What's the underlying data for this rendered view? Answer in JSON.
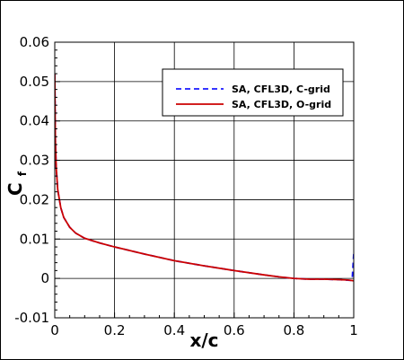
{
  "chart_data": {
    "type": "line",
    "xlabel": "x/c",
    "ylabel_main": "C",
    "ylabel_sub": "f",
    "xlim": [
      0,
      1
    ],
    "ylim": [
      -0.01,
      0.06
    ],
    "xticks": [
      0,
      0.2,
      0.4,
      0.6,
      0.8,
      1
    ],
    "xtick_labels": [
      "0",
      "0.2",
      "0.4",
      "0.6",
      "0.8",
      "1"
    ],
    "yticks": [
      -0.01,
      0,
      0.01,
      0.02,
      0.03,
      0.04,
      0.05,
      0.06
    ],
    "ytick_labels": [
      "-0.01",
      "0",
      "0.01",
      "0.02",
      "0.03",
      "0.04",
      "0.05",
      "0.06"
    ],
    "grid": true,
    "legend_position": "top-right",
    "series": [
      {
        "name": "SA, CFL3D, C-grid",
        "color": "#1a1aff",
        "style": "dashed",
        "x": [
          0,
          0.002,
          0.005,
          0.01,
          0.02,
          0.03,
          0.05,
          0.07,
          0.1,
          0.15,
          0.2,
          0.3,
          0.4,
          0.5,
          0.6,
          0.7,
          0.75,
          0.8,
          0.85,
          0.9,
          0.95,
          0.99,
          0.995,
          1.0
        ],
        "y": [
          0.052,
          0.035,
          0.028,
          0.0225,
          0.018,
          0.0155,
          0.013,
          0.0115,
          0.0102,
          0.009,
          0.008,
          0.0062,
          0.0045,
          0.0032,
          0.002,
          0.0009,
          0.0004,
          0.0,
          -0.0002,
          -0.0002,
          -0.0003,
          -0.0005,
          0.0,
          0.0062
        ]
      },
      {
        "name": "SA, CFL3D, O-grid",
        "color": "#cc0000",
        "style": "solid",
        "x": [
          0,
          0.002,
          0.005,
          0.01,
          0.02,
          0.03,
          0.05,
          0.07,
          0.1,
          0.15,
          0.2,
          0.3,
          0.4,
          0.5,
          0.6,
          0.7,
          0.75,
          0.8,
          0.85,
          0.9,
          0.95,
          0.98,
          1.0
        ],
        "y": [
          0.052,
          0.035,
          0.028,
          0.0225,
          0.018,
          0.0155,
          0.013,
          0.0115,
          0.0102,
          0.009,
          0.008,
          0.0062,
          0.0045,
          0.0032,
          0.002,
          0.0009,
          0.0004,
          0.0,
          -0.0002,
          -0.0002,
          -0.0003,
          -0.0004,
          -0.0006
        ]
      }
    ]
  }
}
